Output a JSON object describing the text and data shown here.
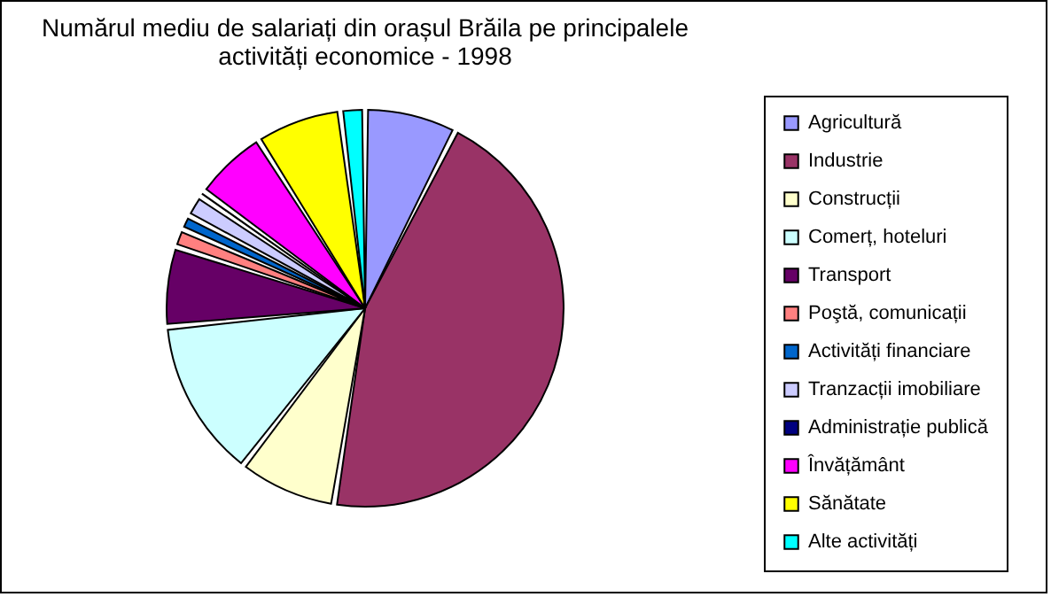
{
  "chart_data": {
    "type": "pie",
    "title": [
      "Numărul mediu de salariați din orașul Brăila pe principalele",
      "activități economice - 1998"
    ],
    "categories": [
      "Agricultură",
      "Industrie",
      "Construcții",
      "Comerț, hoteluri",
      "Transport",
      "Poştă, comunicații",
      "Activități financiare",
      "Tranzacții imobiliare",
      "Administrație publică",
      "Învățământ",
      "Sănătate",
      "Alte activități"
    ],
    "values": [
      7.5,
      45,
      8,
      13,
      6.5,
      1.5,
      1.2,
      1.8,
      0.5,
      6,
      7,
      2
    ],
    "colors": [
      "#9999ff",
      "#993366",
      "#ffffcc",
      "#ccffff",
      "#660066",
      "#ff8080",
      "#0066cc",
      "#ccccff",
      "#000080",
      "#ff00ff",
      "#ffff00",
      "#00ffff"
    ],
    "legend": "right"
  }
}
